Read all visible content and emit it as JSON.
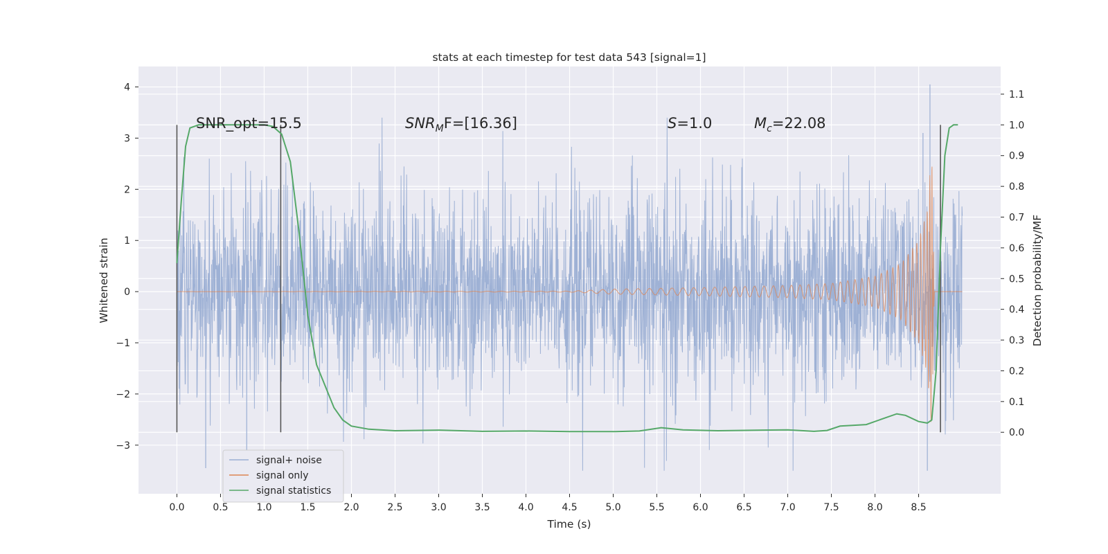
{
  "chart_data": {
    "type": "line",
    "title": "stats at each timestep for test data 543 [signal=1]",
    "xlabel": "Time (s)",
    "ylabel": "Whitened strain",
    "ylabel_right": "Detection probability/MF",
    "xlim": [
      -0.44,
      9.44
    ],
    "ylim": [
      -3.95,
      4.4
    ],
    "ylim_right": [
      -0.2,
      1.19
    ],
    "x_ticks": [
      "0.0",
      "0.5",
      "1.0",
      "1.5",
      "2.0",
      "2.5",
      "3.0",
      "3.5",
      "4.0",
      "4.5",
      "5.0",
      "5.5",
      "6.0",
      "6.5",
      "7.0",
      "7.5",
      "8.0",
      "8.5"
    ],
    "y_ticks": [
      "−3",
      "−2",
      "−1",
      "0",
      "1",
      "2",
      "3",
      "4"
    ],
    "y_ticks_right": [
      "0.0",
      "0.1",
      "0.2",
      "0.3",
      "0.4",
      "0.5",
      "0.6",
      "0.7",
      "0.8",
      "0.9",
      "1.0",
      "1.1"
    ],
    "grid": true,
    "legend_position": "lower-left",
    "annotations": {
      "snr_opt": "SNR_opt=15.5",
      "snr_mf_main": "SNR",
      "snr_mf_sub": "M",
      "snr_mf_rest": "F=[16.36]",
      "s_sym": "S",
      "s_val": "=1.0",
      "mc_sym": "M",
      "mc_sub": "c",
      "mc_val": "=22.08"
    },
    "vertical_markers": [
      0.0,
      1.19,
      8.75
    ],
    "series": [
      {
        "name": "signal+ noise",
        "color": "#9aaed3",
        "description": "whitened noisy strain, spans 0 to 9 s, envelope roughly -2.5 to 2.5 with spikes to 4 and -3.5",
        "x_range": [
          0.0,
          9.0
        ],
        "envelope": [
          -2.2,
          2.3
        ]
      },
      {
        "name": "signal only",
        "color": "#dd8452",
        "description": "chirp signal, near-zero until ~4.5 s, amplitude grows to ~2.8 at ~8.65 s then ends",
        "points": [
          [
            0.0,
            0.0
          ],
          [
            4.5,
            0.01
          ],
          [
            5.0,
            0.05
          ],
          [
            6.0,
            0.08
          ],
          [
            7.0,
            0.12
          ],
          [
            7.5,
            0.16
          ],
          [
            8.0,
            0.3
          ],
          [
            8.3,
            0.55
          ],
          [
            8.5,
            1.0
          ],
          [
            8.6,
            1.6
          ],
          [
            8.65,
            2.8
          ],
          [
            8.68,
            0.0
          ],
          [
            9.0,
            0.0
          ]
        ]
      },
      {
        "name": "signal statistics",
        "color": "#55a868",
        "points": [
          [
            0.0,
            0.55
          ],
          [
            0.05,
            0.75
          ],
          [
            0.1,
            0.93
          ],
          [
            0.15,
            0.99
          ],
          [
            0.25,
            1.0
          ],
          [
            0.6,
            1.0
          ],
          [
            1.0,
            1.0
          ],
          [
            1.1,
            0.995
          ],
          [
            1.2,
            0.97
          ],
          [
            1.3,
            0.88
          ],
          [
            1.4,
            0.65
          ],
          [
            1.5,
            0.38
          ],
          [
            1.6,
            0.22
          ],
          [
            1.7,
            0.15
          ],
          [
            1.8,
            0.08
          ],
          [
            1.9,
            0.04
          ],
          [
            2.0,
            0.02
          ],
          [
            2.2,
            0.01
          ],
          [
            2.5,
            0.005
          ],
          [
            3.0,
            0.007
          ],
          [
            3.5,
            0.003
          ],
          [
            4.0,
            0.004
          ],
          [
            4.5,
            0.002
          ],
          [
            5.0,
            0.002
          ],
          [
            5.3,
            0.004
          ],
          [
            5.55,
            0.015
          ],
          [
            5.8,
            0.008
          ],
          [
            6.2,
            0.005
          ],
          [
            6.7,
            0.007
          ],
          [
            7.0,
            0.008
          ],
          [
            7.3,
            0.003
          ],
          [
            7.45,
            0.006
          ],
          [
            7.6,
            0.02
          ],
          [
            7.9,
            0.025
          ],
          [
            8.1,
            0.045
          ],
          [
            8.25,
            0.06
          ],
          [
            8.35,
            0.055
          ],
          [
            8.5,
            0.035
          ],
          [
            8.6,
            0.03
          ],
          [
            8.65,
            0.04
          ],
          [
            8.7,
            0.2
          ],
          [
            8.75,
            0.6
          ],
          [
            8.8,
            0.9
          ],
          [
            8.85,
            0.99
          ],
          [
            8.9,
            1.0
          ],
          [
            8.95,
            1.0
          ]
        ]
      }
    ]
  }
}
